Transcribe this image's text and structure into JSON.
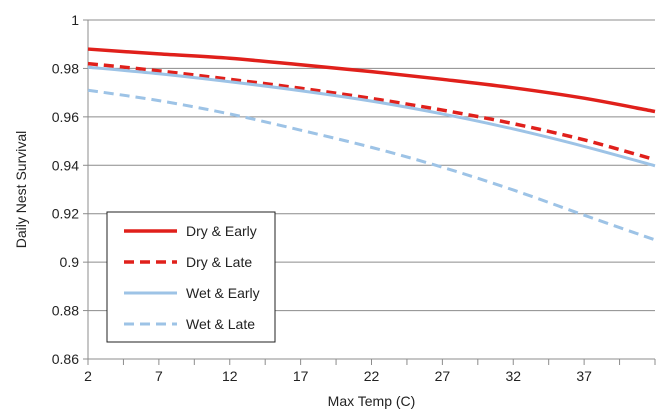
{
  "chart_data": {
    "type": "line",
    "title": "",
    "xlabel": "Max Temp (C)",
    "ylabel": "Daily Nest Survival",
    "xlim": [
      2,
      42
    ],
    "ylim": [
      0.86,
      1.0
    ],
    "xticks": [
      2,
      7,
      12,
      17,
      22,
      27,
      32,
      37
    ],
    "yticks": [
      0.86,
      0.88,
      0.9,
      0.92,
      0.94,
      0.96,
      0.98,
      1.0
    ],
    "ytick_labels": [
      "0.86",
      "0.88",
      "0.9",
      "0.92",
      "0.94",
      "0.96",
      "0.98",
      "1"
    ],
    "grid": "horizontal",
    "legend_position": "lower-left",
    "x": [
      2,
      7,
      12,
      17,
      22,
      27,
      32,
      37,
      42
    ],
    "series": [
      {
        "name": "Dry & Early",
        "color": "#e0201b",
        "dashed": false,
        "values": [
          0.988,
          0.986,
          0.9842,
          0.9815,
          0.9787,
          0.9755,
          0.972,
          0.9677,
          0.9622
        ]
      },
      {
        "name": "Dry & Late",
        "color": "#e0201b",
        "dashed": true,
        "values": [
          0.982,
          0.979,
          0.9755,
          0.9718,
          0.9676,
          0.9628,
          0.9572,
          0.9505,
          0.9423
        ]
      },
      {
        "name": "Wet & Early",
        "color": "#9dc3e6",
        "dashed": false,
        "values": [
          0.9805,
          0.9778,
          0.9745,
          0.9708,
          0.9665,
          0.9612,
          0.955,
          0.9478,
          0.9398
        ]
      },
      {
        "name": "Wet & Late",
        "color": "#9dc3e6",
        "dashed": true,
        "values": [
          0.971,
          0.9667,
          0.9612,
          0.9545,
          0.9474,
          0.9392,
          0.9298,
          0.9194,
          0.9092
        ]
      }
    ]
  }
}
